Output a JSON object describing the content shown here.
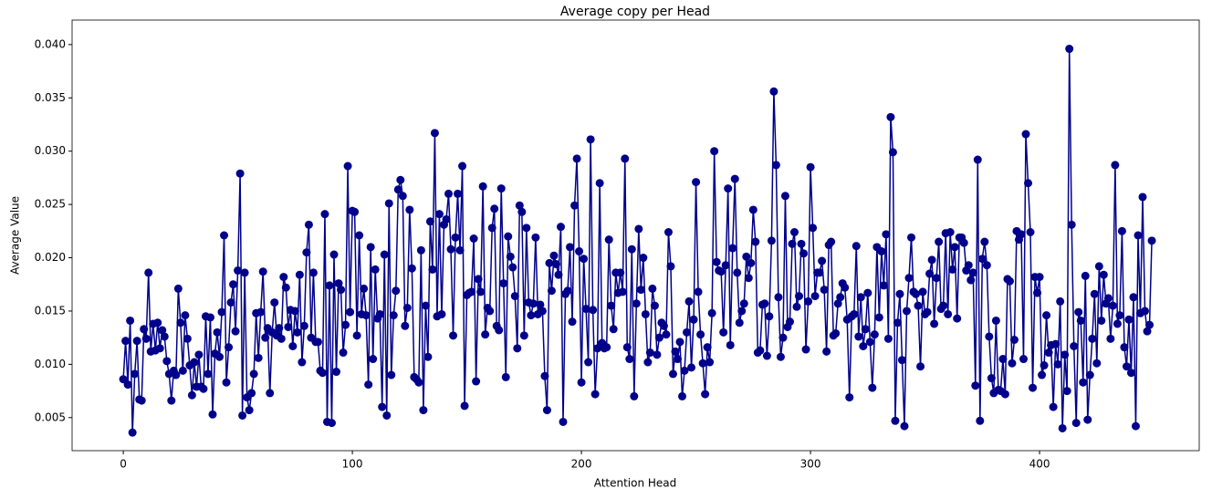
{
  "chart_data": {
    "type": "line",
    "title": "Average copy per Head",
    "xlabel": "Attention Head",
    "ylabel": "Average Value",
    "xlim": [
      -22.35,
      469.7
    ],
    "ylim": [
      0.0019,
      0.0423
    ],
    "xticks": [
      0,
      100,
      200,
      300,
      400
    ],
    "yticks": [
      0.005,
      {
        "value": 0.01,
        "label": "0.010"
      },
      0.015,
      {
        "value": 0.02,
        "label": "0.020"
      },
      0.025,
      {
        "value": 0.03,
        "label": "0.030"
      },
      0.035,
      {
        "value": 0.04,
        "label": "0.040"
      }
    ],
    "marker": "circle",
    "series": [
      {
        "color": "#00008b",
        "x": [
          0,
          1,
          2,
          3,
          4,
          5,
          6,
          7,
          8,
          9,
          10,
          11,
          12,
          13,
          14,
          15,
          16,
          17,
          18,
          19,
          20,
          21,
          22,
          23,
          24,
          25,
          26,
          27,
          28,
          29,
          30,
          31,
          32,
          33,
          34,
          35,
          36,
          37,
          38,
          39,
          40,
          41,
          42,
          43,
          44,
          45,
          46,
          47,
          48,
          49,
          50,
          51,
          52,
          53,
          54,
          55,
          56,
          57,
          58,
          59,
          60,
          61,
          62,
          63,
          64,
          65,
          66,
          67,
          68,
          69,
          70,
          71,
          72,
          73,
          74,
          75,
          76,
          77,
          78,
          79,
          80,
          81,
          82,
          83,
          84,
          85,
          86,
          87,
          88,
          89,
          90,
          91,
          92,
          93,
          94,
          95,
          96,
          97,
          98,
          99,
          100,
          101,
          102,
          103,
          104,
          105,
          106,
          107,
          108,
          109,
          110,
          111,
          112,
          113,
          114,
          115,
          116,
          117,
          118,
          119,
          120,
          121,
          122,
          123,
          124,
          125,
          126,
          127,
          128,
          129,
          130,
          131,
          132,
          133,
          134,
          135,
          136,
          137,
          138,
          139,
          140,
          141,
          142,
          143,
          144,
          145,
          146,
          147,
          148,
          149,
          150,
          151,
          152,
          153,
          154,
          155,
          156,
          157,
          158,
          159,
          160,
          161,
          162,
          163,
          164,
          165,
          166,
          167,
          168,
          169,
          170,
          171,
          172,
          173,
          174,
          175,
          176,
          177,
          178,
          179,
          180,
          181,
          182,
          183,
          184,
          185,
          186,
          187,
          188,
          189,
          190,
          191,
          192,
          193,
          194,
          195,
          196,
          197,
          198,
          199,
          200,
          201,
          202,
          203,
          204,
          205,
          206,
          207,
          208,
          209,
          210,
          211,
          212,
          213,
          214,
          215,
          216,
          217,
          218,
          219,
          220,
          221,
          222,
          223,
          224,
          225,
          226,
          227,
          228,
          229,
          230,
          231,
          232,
          233,
          234,
          235,
          236,
          237,
          238,
          239,
          240,
          241,
          242,
          243,
          244,
          245,
          246,
          247,
          248,
          249,
          250,
          251,
          252,
          253,
          254,
          255,
          256,
          257,
          258,
          259,
          260,
          261,
          262,
          263,
          264,
          265,
          266,
          267,
          268,
          269,
          270,
          271,
          272,
          273,
          274,
          275,
          276,
          277,
          278,
          279,
          280,
          281,
          282,
          283,
          284,
          285,
          286,
          287,
          288,
          289,
          290,
          291,
          292,
          293,
          294,
          295,
          296,
          297,
          298,
          299,
          300,
          301,
          302,
          303,
          304,
          305,
          306,
          307,
          308,
          309,
          310,
          311,
          312,
          313,
          314,
          315,
          316,
          317,
          318,
          319,
          320,
          321,
          322,
          323,
          324,
          325,
          326,
          327,
          328,
          329,
          330,
          331,
          332,
          333,
          334,
          335,
          336,
          337,
          338,
          339,
          340,
          341,
          342,
          343,
          344,
          345,
          346,
          347,
          348,
          349,
          350,
          351,
          352,
          353,
          354,
          355,
          356,
          357,
          358,
          359,
          360,
          361,
          362,
          363,
          364,
          365,
          366,
          367,
          368,
          369,
          370,
          371,
          372,
          373,
          374,
          375,
          376,
          377,
          378,
          379,
          380,
          381,
          382,
          383,
          384,
          385,
          386,
          387,
          388,
          389,
          390,
          391,
          392,
          393,
          394,
          395,
          396,
          397,
          398,
          399,
          400,
          401,
          402,
          403,
          404,
          405,
          406,
          407,
          408,
          409,
          410,
          411,
          412,
          413,
          414,
          415,
          416,
          417,
          418,
          419,
          420,
          421,
          422,
          423,
          424,
          425,
          426,
          427,
          428,
          429,
          430,
          431,
          432,
          433,
          434,
          435,
          436,
          437,
          438,
          439,
          440,
          441,
          442,
          443,
          444,
          445,
          446,
          447,
          448,
          449
        ],
        "values": [
          0.0086,
          0.0122,
          0.0081,
          0.0141,
          0.0036,
          0.0091,
          0.0122,
          0.0067,
          0.0066,
          0.0133,
          0.0124,
          0.0186,
          0.0112,
          0.0138,
          0.0113,
          0.0139,
          0.0115,
          0.0132,
          0.0126,
          0.0103,
          0.0091,
          0.0066,
          0.0094,
          0.009,
          0.0171,
          0.0139,
          0.0094,
          0.0146,
          0.0124,
          0.0099,
          0.0071,
          0.0102,
          0.0079,
          0.0109,
          0.0079,
          0.0077,
          0.0145,
          0.0091,
          0.0144,
          0.0053,
          0.011,
          0.013,
          0.0107,
          0.0149,
          0.0221,
          0.0083,
          0.0116,
          0.0158,
          0.0175,
          0.0131,
          0.0188,
          0.0279,
          0.0052,
          0.0186,
          0.0069,
          0.0057,
          0.0073,
          0.0091,
          0.0148,
          0.0106,
          0.0149,
          0.0187,
          0.0125,
          0.0134,
          0.0073,
          0.013,
          0.0158,
          0.0127,
          0.0134,
          0.0124,
          0.0182,
          0.0172,
          0.0135,
          0.0151,
          0.0117,
          0.015,
          0.013,
          0.0184,
          0.0102,
          0.0136,
          0.0205,
          0.0231,
          0.0125,
          0.0186,
          0.0121,
          0.0121,
          0.0094,
          0.0092,
          0.0241,
          0.0046,
          0.0174,
          0.0045,
          0.0203,
          0.0093,
          0.0176,
          0.017,
          0.0111,
          0.0137,
          0.0286,
          0.0149,
          0.0244,
          0.0243,
          0.0127,
          0.0221,
          0.0147,
          0.0171,
          0.0146,
          0.0081,
          0.021,
          0.0105,
          0.0189,
          0.0143,
          0.0147,
          0.006,
          0.0203,
          0.0052,
          0.0251,
          0.009,
          0.0146,
          0.0169,
          0.0264,
          0.0273,
          0.0258,
          0.0136,
          0.0153,
          0.0245,
          0.019,
          0.0088,
          0.0086,
          0.0083,
          0.0207,
          0.0057,
          0.0155,
          0.0107,
          0.0234,
          0.0189,
          0.0317,
          0.0145,
          0.0241,
          0.0147,
          0.0231,
          0.0236,
          0.026,
          0.0208,
          0.0127,
          0.0219,
          0.026,
          0.0207,
          0.0286,
          0.0061,
          0.0165,
          0.0167,
          0.0168,
          0.0218,
          0.0084,
          0.018,
          0.0168,
          0.0267,
          0.0128,
          0.0153,
          0.015,
          0.0228,
          0.0246,
          0.0136,
          0.0132,
          0.0265,
          0.0176,
          0.0088,
          0.022,
          0.0201,
          0.0191,
          0.0164,
          0.0115,
          0.0249,
          0.0243,
          0.0127,
          0.0228,
          0.0158,
          0.0146,
          0.0157,
          0.0219,
          0.0147,
          0.0156,
          0.015,
          0.0089,
          0.0057,
          0.0195,
          0.0169,
          0.0202,
          0.0194,
          0.0184,
          0.0229,
          0.0046,
          0.0166,
          0.0169,
          0.021,
          0.014,
          0.0249,
          0.0293,
          0.0206,
          0.0083,
          0.0199,
          0.0152,
          0.0102,
          0.0311,
          0.0151,
          0.0072,
          0.0115,
          0.027,
          0.012,
          0.0115,
          0.0116,
          0.0217,
          0.0155,
          0.0133,
          0.0186,
          0.0167,
          0.0186,
          0.0168,
          0.0293,
          0.0116,
          0.0105,
          0.0208,
          0.007,
          0.0157,
          0.0227,
          0.017,
          0.02,
          0.0147,
          0.0102,
          0.0111,
          0.0171,
          0.0155,
          0.0109,
          0.0125,
          0.0139,
          0.0136,
          0.0128,
          0.0224,
          0.0192,
          0.0091,
          0.0112,
          0.0105,
          0.0121,
          0.007,
          0.0094,
          0.013,
          0.0159,
          0.0097,
          0.0142,
          0.0271,
          0.0168,
          0.0128,
          0.0101,
          0.0072,
          0.0116,
          0.0102,
          0.0148,
          0.03,
          0.0196,
          0.0188,
          0.0187,
          0.013,
          0.0193,
          0.0265,
          0.0118,
          0.0209,
          0.0274,
          0.0186,
          0.0139,
          0.015,
          0.0157,
          0.0201,
          0.0181,
          0.0195,
          0.0245,
          0.0215,
          0.0111,
          0.0113,
          0.0156,
          0.0157,
          0.0108,
          0.0145,
          0.0216,
          0.0356,
          0.0287,
          0.0163,
          0.0107,
          0.0125,
          0.0258,
          0.0135,
          0.014,
          0.0213,
          0.0224,
          0.0154,
          0.0164,
          0.0213,
          0.0204,
          0.0114,
          0.0159,
          0.0285,
          0.0228,
          0.0164,
          0.0186,
          0.0186,
          0.0197,
          0.017,
          0.0112,
          0.0212,
          0.0215,
          0.0127,
          0.0129,
          0.0157,
          0.0163,
          0.0176,
          0.0172,
          0.0142,
          0.0069,
          0.0145,
          0.0147,
          0.0211,
          0.0126,
          0.0163,
          0.0117,
          0.0133,
          0.0167,
          0.0121,
          0.0078,
          0.0128,
          0.021,
          0.0144,
          0.0206,
          0.0174,
          0.0222,
          0.0124,
          0.0332,
          0.0299,
          0.0047,
          0.0139,
          0.0166,
          0.0104,
          0.0042,
          0.015,
          0.0181,
          0.0219,
          0.0168,
          0.0166,
          0.0155,
          0.0098,
          0.0168,
          0.0147,
          0.0149,
          0.0185,
          0.0198,
          0.0138,
          0.0181,
          0.0215,
          0.0152,
          0.0155,
          0.0223,
          0.0147,
          0.0224,
          0.0189,
          0.021,
          0.0143,
          0.0219,
          0.0219,
          0.0214,
          0.0188,
          0.0193,
          0.0179,
          0.0186,
          0.008,
          0.0292,
          0.0047,
          0.0199,
          0.0215,
          0.0193,
          0.0126,
          0.0087,
          0.0073,
          0.0141,
          0.0076,
          0.0075,
          0.0105,
          0.0072,
          0.018,
          0.0178,
          0.0101,
          0.0123,
          0.0225,
          0.0217,
          0.0222,
          0.0105,
          0.0316,
          0.027,
          0.0224,
          0.0078,
          0.0182,
          0.0167,
          0.0182,
          0.009,
          0.0099,
          0.0146,
          0.0111,
          0.0118,
          0.006,
          0.0119,
          0.01,
          0.0159,
          0.004,
          0.0109,
          0.0075,
          0.0396,
          0.0231,
          0.0117,
          0.0045,
          0.0149,
          0.0141,
          0.0083,
          0.0183,
          0.0048,
          0.009,
          0.0124,
          0.0166,
          0.0101,
          0.0192,
          0.0141,
          0.0184,
          0.0157,
          0.0162,
          0.0124,
          0.0155,
          0.0287,
          0.0138,
          0.0146,
          0.0225,
          0.0116,
          0.0098,
          0.0142,
          0.0092,
          0.0163,
          0.0042,
          0.0221,
          0.0148,
          0.0257,
          0.015,
          0.0131,
          0.0137,
          0.0216
        ]
      }
    ]
  }
}
